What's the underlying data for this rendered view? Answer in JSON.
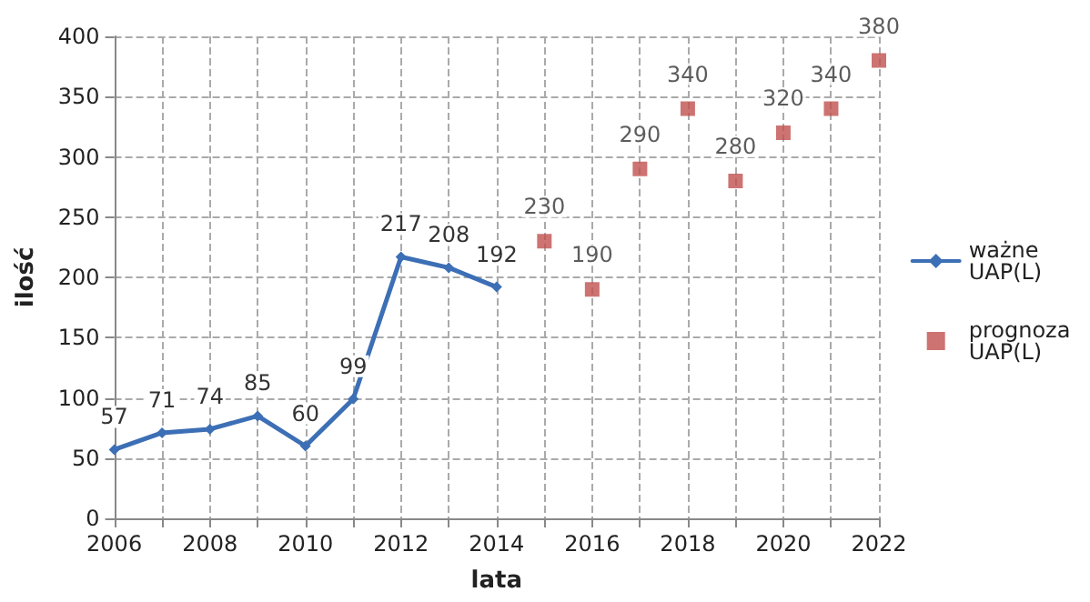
{
  "chart_data": {
    "type": "line",
    "xlabel": "lata",
    "ylabel": "ilość",
    "x": [
      2006,
      2007,
      2008,
      2009,
      2010,
      2011,
      2012,
      2013,
      2014
    ],
    "series": [
      {
        "name": "ważne UAP(L)",
        "color": "#3c6fb5",
        "marker": "diamond",
        "values": [
          57,
          71,
          74,
          85,
          60,
          99,
          217,
          208,
          192
        ]
      },
      {
        "name": "prognoza UAP(L)",
        "type": "scatter",
        "color": "#c0504d",
        "marker": "square",
        "x": [
          2015,
          2016,
          2017,
          2018,
          2019,
          2020,
          2021,
          2022
        ],
        "values": [
          230,
          190,
          290,
          340,
          280,
          320,
          340,
          380
        ]
      }
    ],
    "xlim": [
      2006,
      2022
    ],
    "xticks": [
      2006,
      {
        "value": 2007,
        "label": null
      },
      2008,
      {
        "value": 2009,
        "label": null
      },
      2010,
      {
        "value": 2011,
        "label": null
      },
      2012,
      {
        "value": 2013,
        "label": null
      },
      2014,
      {
        "value": 2015,
        "label": null
      },
      2016,
      {
        "value": 2017,
        "label": null
      },
      2018,
      {
        "value": 2019,
        "label": null
      },
      2020,
      {
        "value": 2021,
        "label": null
      },
      2022
    ],
    "ylim": [
      0,
      400
    ],
    "yticks": [
      0,
      50,
      100,
      150,
      200,
      250,
      300,
      350,
      400
    ],
    "grid": true,
    "legend": "right",
    "data_labels": true,
    "line_style": "solid"
  }
}
